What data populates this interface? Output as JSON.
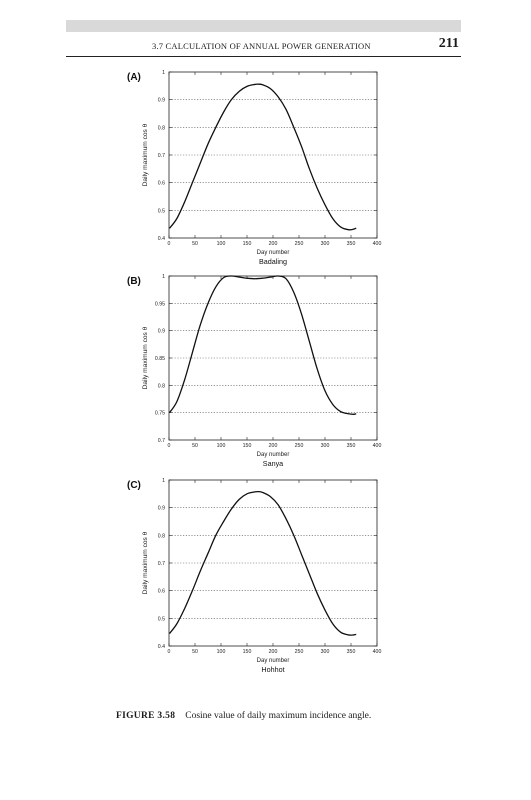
{
  "header": {
    "running_title": "3.7 CALCULATION OF ANNUAL POWER GENERATION",
    "page_number": "211"
  },
  "caption": {
    "label": "FIGURE 3.58",
    "text": "Cosine value of daily maximum incidence angle."
  },
  "chart_data": [
    {
      "type": "line",
      "panel_label": "(A)",
      "title": "",
      "xlabel": "Day number",
      "ylabel": "Daily maximum  cos θ",
      "subtitle_below": "Badaling",
      "xlim": [
        0,
        400
      ],
      "ylim": [
        0.4,
        1.0
      ],
      "xticks": [
        0,
        50,
        100,
        150,
        200,
        250,
        300,
        350,
        400
      ],
      "yticks": [
        0.4,
        0.5,
        0.6,
        0.7,
        0.8,
        0.9,
        1
      ],
      "grid": "horizontal-dotted",
      "series": [
        {
          "x": [
            1,
            15,
            30,
            45,
            60,
            75,
            90,
            105,
            120,
            135,
            150,
            165,
            172,
            180,
            195,
            210,
            225,
            240,
            255,
            270,
            285,
            300,
            315,
            330,
            345,
            355,
            360
          ],
          "y": [
            0.435,
            0.47,
            0.53,
            0.6,
            0.67,
            0.74,
            0.8,
            0.855,
            0.9,
            0.93,
            0.948,
            0.955,
            0.956,
            0.954,
            0.94,
            0.91,
            0.865,
            0.8,
            0.73,
            0.65,
            0.58,
            0.52,
            0.47,
            0.44,
            0.43,
            0.432,
            0.436
          ]
        }
      ]
    },
    {
      "type": "line",
      "panel_label": "(B)",
      "title": "",
      "xlabel": "Day number",
      "ylabel": "Daily maximum  cos θ",
      "subtitle_below": "Sanya",
      "xlim": [
        0,
        400
      ],
      "ylim": [
        0.7,
        1.0
      ],
      "xticks": [
        0,
        50,
        100,
        150,
        200,
        250,
        300,
        350,
        400
      ],
      "yticks": [
        0.7,
        0.75,
        0.8,
        0.85,
        0.9,
        0.95,
        1
      ],
      "grid": "horizontal-dotted",
      "series": [
        {
          "x": [
            1,
            15,
            30,
            45,
            60,
            75,
            90,
            105,
            120,
            135,
            150,
            165,
            180,
            195,
            210,
            225,
            240,
            255,
            270,
            285,
            300,
            315,
            330,
            345,
            355,
            360
          ],
          "y": [
            0.75,
            0.77,
            0.81,
            0.86,
            0.91,
            0.95,
            0.98,
            0.997,
            1.0,
            0.998,
            0.996,
            0.995,
            0.996,
            0.998,
            1.0,
            0.995,
            0.97,
            0.93,
            0.88,
            0.83,
            0.79,
            0.765,
            0.752,
            0.748,
            0.747,
            0.748
          ]
        }
      ]
    },
    {
      "type": "line",
      "panel_label": "(C)",
      "title": "",
      "xlabel": "Day number",
      "ylabel": "Daily maximum  cos θ",
      "subtitle_below": "Hohhot",
      "xlim": [
        0,
        400
      ],
      "ylim": [
        0.4,
        1.0
      ],
      "xticks": [
        0,
        50,
        100,
        150,
        200,
        250,
        300,
        350,
        400
      ],
      "yticks": [
        0.4,
        0.5,
        0.6,
        0.7,
        0.8,
        0.9,
        1
      ],
      "grid": "horizontal-dotted",
      "series": [
        {
          "x": [
            1,
            15,
            30,
            45,
            60,
            75,
            90,
            105,
            120,
            135,
            150,
            165,
            172,
            180,
            195,
            210,
            225,
            240,
            255,
            270,
            285,
            300,
            315,
            330,
            345,
            355,
            360
          ],
          "y": [
            0.445,
            0.48,
            0.535,
            0.6,
            0.67,
            0.735,
            0.8,
            0.85,
            0.895,
            0.93,
            0.95,
            0.957,
            0.958,
            0.955,
            0.94,
            0.91,
            0.86,
            0.8,
            0.73,
            0.66,
            0.59,
            0.53,
            0.48,
            0.45,
            0.44,
            0.44,
            0.442
          ]
        }
      ]
    }
  ]
}
